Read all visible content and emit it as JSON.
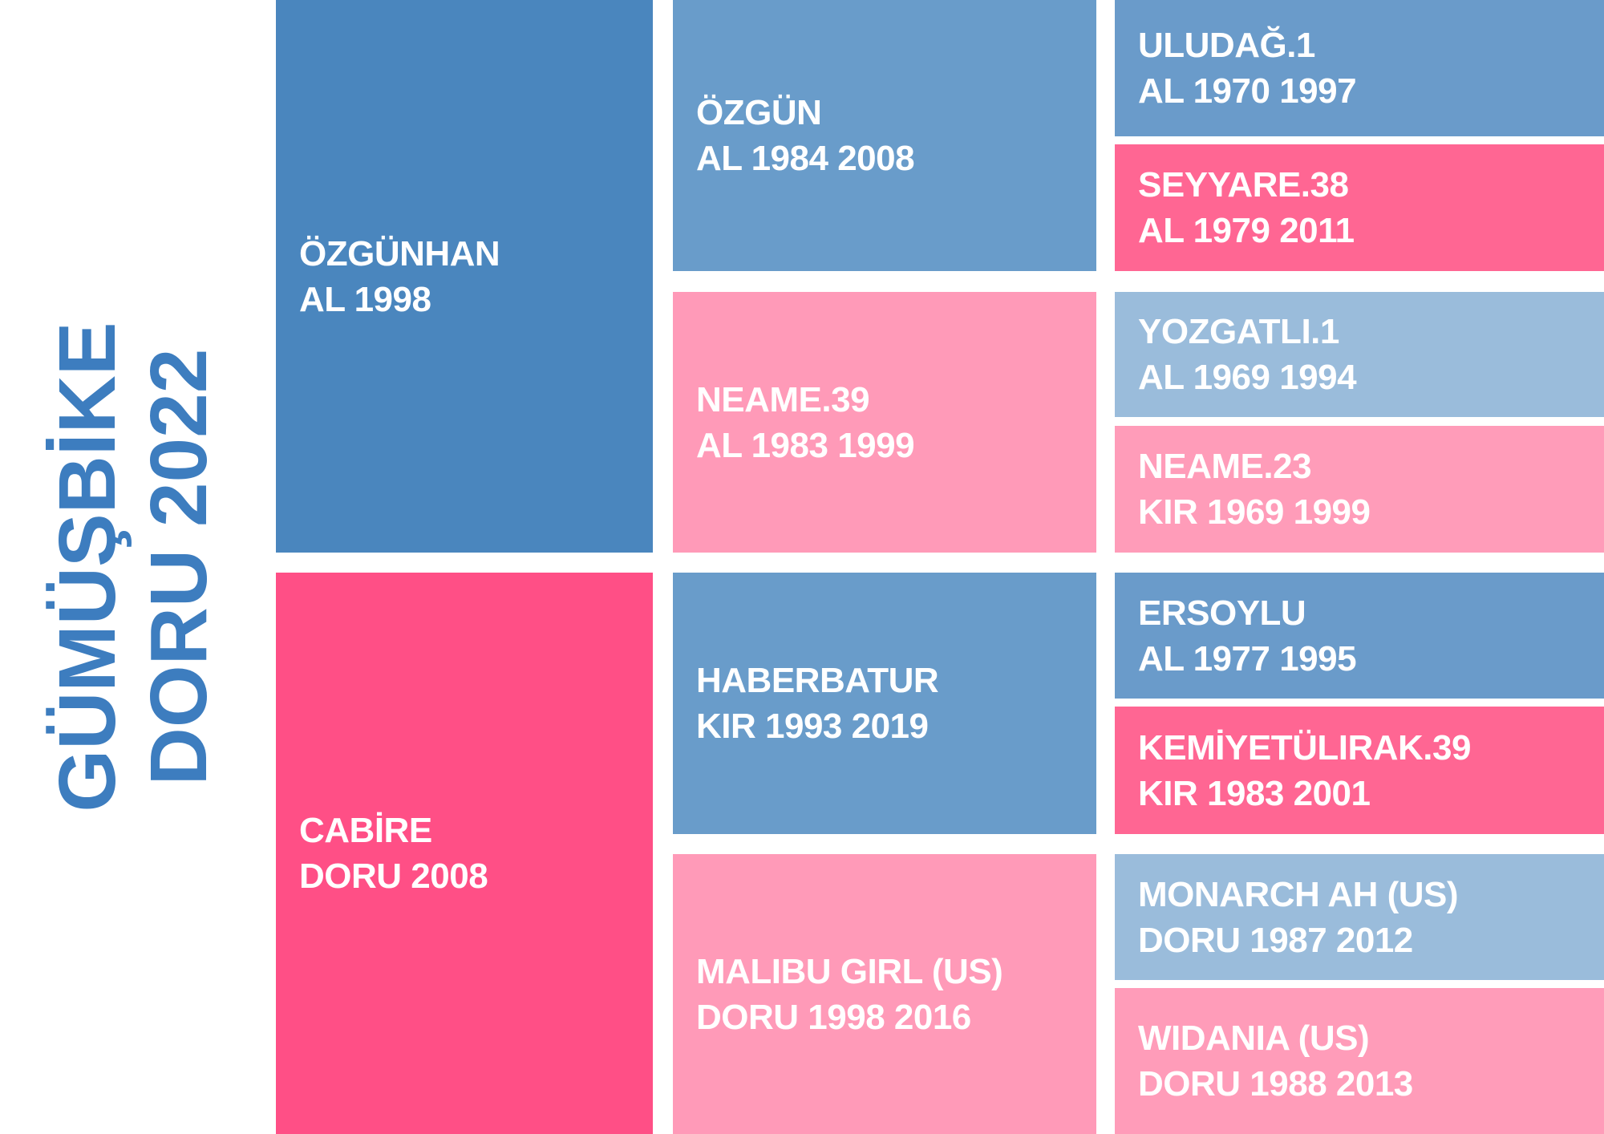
{
  "title": {
    "name": "GÜMÜŞBİKE",
    "details": "DORU 2022"
  },
  "sire": {
    "name": "ÖZGÜNHAN",
    "details": "AL 1998"
  },
  "dam": {
    "name": "CABİRE",
    "details": "DORU 2008"
  },
  "grandparents": [
    {
      "name": "ÖZGÜN",
      "details": "AL 1984 2008"
    },
    {
      "name": "NEAME.39",
      "details": "AL 1983 1999"
    },
    {
      "name": "HABERBATUR",
      "details": "KIR 1993 2019"
    },
    {
      "name": "MALIBU GIRL (US)",
      "details": "DORU 1998 2016"
    }
  ],
  "great_grandparents": [
    {
      "name": "ULUDAĞ.1",
      "details": "AL 1970 1997"
    },
    {
      "name": "SEYYARE.38",
      "details": "AL 1979 2011"
    },
    {
      "name": "YOZGATLI.1",
      "details": "AL 1969 1994"
    },
    {
      "name": "NEAME.23",
      "details": "KIR 1969 1999"
    },
    {
      "name": "ERSOYLU",
      "details": "AL 1977 1995"
    },
    {
      "name": "KEMİYETÜLIRAK.39",
      "details": "KIR 1983 2001"
    },
    {
      "name": "MONARCH AH (US)",
      "details": "DORU 1987 2012"
    },
    {
      "name": "WIDANIA (US)",
      "details": "DORU 1988 2013"
    }
  ]
}
